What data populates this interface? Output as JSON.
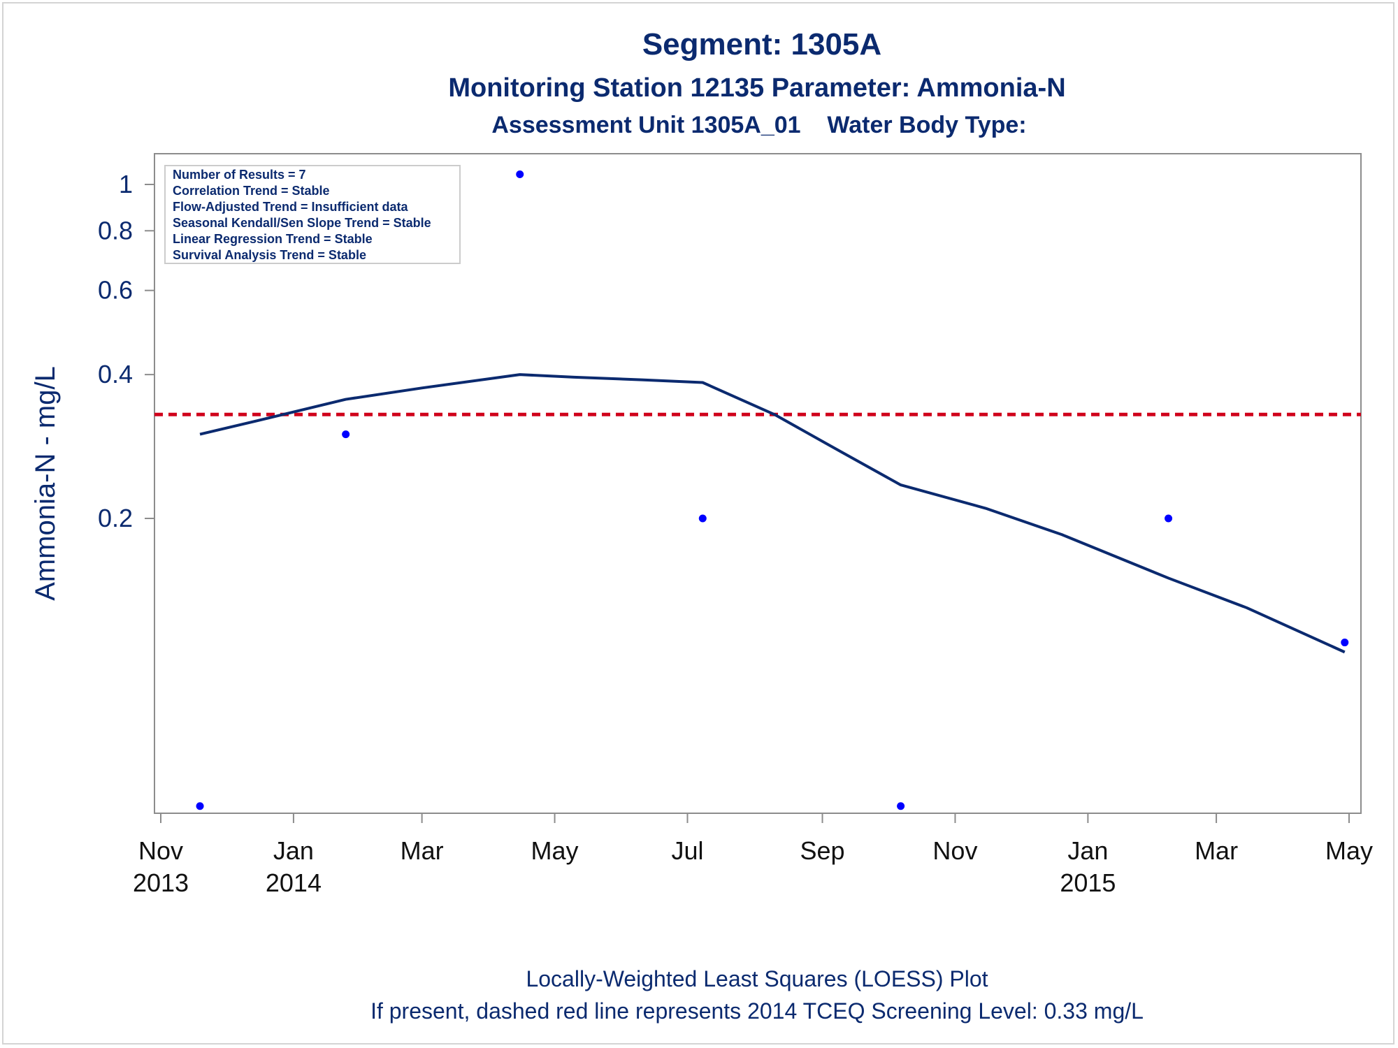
{
  "header": {
    "title": "Segment: 1305A",
    "subtitle": "Monitoring Station 12135 Parameter: Ammonia-N",
    "subtitle2": "Assessment Unit 1305A_01    Water Body Type:"
  },
  "stats": [
    "Number of Results = 7",
    "Correlation Trend = Stable",
    "Flow-Adjusted Trend = Insufficient data",
    "Seasonal Kendall/Sen Slope Trend = Stable",
    "Linear Regression Trend = Stable",
    "Survival Analysis Trend = Stable"
  ],
  "footnote": {
    "line1": "Locally-Weighted Least Squares (LOESS) Plot",
    "line2": "If present, dashed red line represents 2014 TCEQ Screening Level: 0.33 mg/L"
  },
  "colors": {
    "points": "#0000ff",
    "loess": "#0b2a6f",
    "screening": "#d0021b",
    "text": "#0b2a6f"
  },
  "chart_data": {
    "type": "scatter",
    "title": "Segment: 1305A",
    "xlabel": "",
    "ylabel": "Ammonia-N - mg/L",
    "y_scale": "log",
    "ylim": [
      0.05,
      1.1
    ],
    "xlim": [
      "2013-11-01",
      "2015-05-01"
    ],
    "y_ticks": [
      0.2,
      0.4,
      0.6,
      0.8,
      1
    ],
    "y_tick_labels": [
      "0.2",
      "0.4",
      "0.6",
      "0.8",
      "1"
    ],
    "x_ticks": [
      {
        "date": "2013-11-01",
        "month": "Nov",
        "year": "2013"
      },
      {
        "date": "2014-01-01",
        "month": "Jan",
        "year": "2014"
      },
      {
        "date": "2014-03-01",
        "month": "Mar",
        "year": ""
      },
      {
        "date": "2014-05-01",
        "month": "May",
        "year": ""
      },
      {
        "date": "2014-07-01",
        "month": "Jul",
        "year": ""
      },
      {
        "date": "2014-09-01",
        "month": "Sep",
        "year": ""
      },
      {
        "date": "2014-11-01",
        "month": "Nov",
        "year": ""
      },
      {
        "date": "2015-01-01",
        "month": "Jan",
        "year": "2015"
      },
      {
        "date": "2015-03-01",
        "month": "Mar",
        "year": ""
      },
      {
        "date": "2015-05-01",
        "month": "May",
        "year": ""
      }
    ],
    "grid": false,
    "series": [
      {
        "kind": "points",
        "x": [
          "2013-11-19",
          "2014-01-25",
          "2014-04-15",
          "2014-07-08",
          "2014-10-07",
          "2015-02-07",
          "2015-04-29"
        ],
        "y": [
          0.05,
          0.3,
          1.05,
          0.2,
          0.05,
          0.2,
          0.11
        ]
      },
      {
        "kind": "loess",
        "x": [
          "2013-11-19",
          "2013-12-15",
          "2014-01-25",
          "2014-03-01",
          "2014-04-15",
          "2014-05-10",
          "2014-06-10",
          "2014-07-08",
          "2014-08-10",
          "2014-09-10",
          "2014-10-07",
          "2014-11-15",
          "2014-12-20",
          "2015-02-07",
          "2015-03-15",
          "2015-04-29"
        ],
        "y": [
          0.3,
          0.32,
          0.355,
          0.375,
          0.4,
          0.395,
          0.39,
          0.385,
          0.33,
          0.275,
          0.235,
          0.21,
          0.185,
          0.15,
          0.13,
          0.105
        ]
      }
    ],
    "reference_line": {
      "y": 0.33,
      "style": "dashed"
    }
  }
}
